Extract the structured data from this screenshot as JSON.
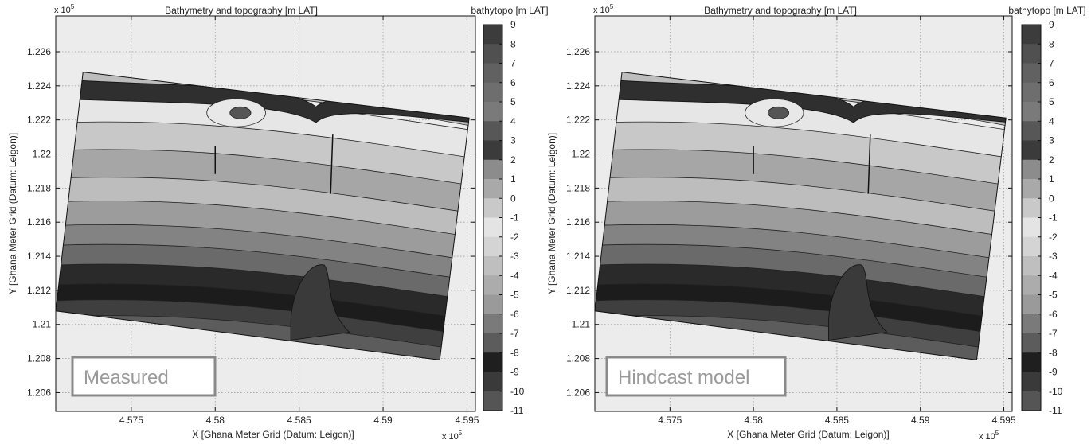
{
  "figure_panels": [
    {
      "title": "Bathymetry and topography [m LAT]",
      "colorbar_label": "bathytopo [m LAT]",
      "x_exponent_base": "x 10",
      "x_exponent_pow": "5",
      "y_exponent_base": "x 10",
      "y_exponent_pow": "5",
      "xlabel": "X [Ghana Meter Grid (Datum: Leigon)]",
      "ylabel": "Y [Ghana Meter Grid (Datum: Leigon)]",
      "annotation": "Measured"
    },
    {
      "title": "Bathymetry and topography [m LAT]",
      "colorbar_label": "bathytopo [m LAT]",
      "x_exponent_base": "x 10",
      "x_exponent_pow": "5",
      "y_exponent_base": "x 10",
      "y_exponent_pow": "5",
      "xlabel": "X [Ghana Meter Grid (Datum: Leigon)]",
      "ylabel": "Y [Ghana Meter Grid (Datum: Leigon)]",
      "annotation": "Hindcast model"
    }
  ],
  "chart_data": [
    {
      "type": "heatmap",
      "title": "Bathymetry and topography [m LAT]",
      "xlabel": "X [Ghana Meter Grid (Datum: Leigon)]",
      "ylabel": "Y [Ghana Meter Grid (Datum: Leigon)]",
      "x_ticks": [
        4.575,
        4.58,
        4.585,
        4.59,
        4.595
      ],
      "x_tick_labels": [
        "4.575",
        "4.58",
        "4.585",
        "4.59",
        "4.595"
      ],
      "xlim": [
        4.5705,
        4.5955
      ],
      "y_ticks": [
        1.206,
        1.208,
        1.21,
        1.212,
        1.214,
        1.216,
        1.218,
        1.22,
        1.222,
        1.224,
        1.226
      ],
      "y_tick_labels": [
        "1.206",
        "1.208",
        "1.21",
        "1.212",
        "1.214",
        "1.216",
        "1.218",
        "1.22",
        "1.222",
        "1.224",
        "1.226"
      ],
      "ylim": [
        1.2049,
        1.2281
      ],
      "scale": "x 10^5",
      "grid": true,
      "colorbar": {
        "label": "bathytopo [m LAT]",
        "levels": [
          9,
          8,
          7,
          6,
          5,
          4,
          3,
          2,
          1,
          0,
          -1,
          -2,
          -3,
          -4,
          -5,
          -6,
          -7,
          -8,
          -9,
          -10,
          -11
        ],
        "colors": [
          "#3c3c3c",
          "#505050",
          "#616161",
          "#6e6e6e",
          "#7a7a7a",
          "#575757",
          "#3b3b3b",
          "#8c8c8c",
          "#a9a9a9",
          "#c9c9c9",
          "#e4e4e4",
          "#d4d4d4",
          "#bfbfbf",
          "#acacac",
          "#9a9a9a",
          "#7a7a7a",
          "#5c5c5c",
          "#1f1f1f",
          "#3a3a3a",
          "#555555",
          "#ffffff"
        ]
      }
    },
    {
      "type": "heatmap",
      "title": "Bathymetry and topography [m LAT]",
      "xlabel": "X [Ghana Meter Grid (Datum: Leigon)]",
      "ylabel": "Y [Ghana Meter Grid (Datum: Leigon)]",
      "x_ticks": [
        4.575,
        4.58,
        4.585,
        4.59,
        4.595
      ],
      "x_tick_labels": [
        "4.575",
        "4.58",
        "4.585",
        "4.59",
        "4.595"
      ],
      "xlim": [
        4.5705,
        4.5955
      ],
      "y_ticks": [
        1.206,
        1.208,
        1.21,
        1.212,
        1.214,
        1.216,
        1.218,
        1.22,
        1.222,
        1.224,
        1.226
      ],
      "y_tick_labels": [
        "1.206",
        "1.208",
        "1.21",
        "1.212",
        "1.214",
        "1.216",
        "1.218",
        "1.22",
        "1.222",
        "1.224",
        "1.226"
      ],
      "ylim": [
        1.2049,
        1.2281
      ],
      "scale": "x 10^5",
      "grid": true,
      "colorbar": {
        "label": "bathytopo [m LAT]",
        "levels": [
          9,
          8,
          7,
          6,
          5,
          4,
          3,
          2,
          1,
          0,
          -1,
          -2,
          -3,
          -4,
          -5,
          -6,
          -7,
          -8,
          -9,
          -10,
          -11
        ],
        "colors": [
          "#3c3c3c",
          "#505050",
          "#616161",
          "#6e6e6e",
          "#7a7a7a",
          "#575757",
          "#3b3b3b",
          "#8c8c8c",
          "#a9a9a9",
          "#c9c9c9",
          "#e4e4e4",
          "#d4d4d4",
          "#bfbfbf",
          "#acacac",
          "#9a9a9a",
          "#7a7a7a",
          "#5c5c5c",
          "#1f1f1f",
          "#3a3a3a",
          "#555555",
          "#ffffff"
        ]
      }
    }
  ]
}
